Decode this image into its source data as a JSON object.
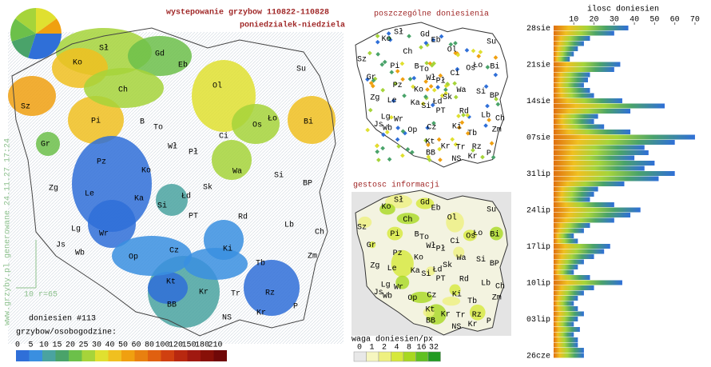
{
  "title": "wystepowanie grzybow 110822-110828",
  "subtitle": "poniedzialek-niedziela",
  "credit": "www.grzyby.pl generowane 24.11.27 17:24",
  "scale_label": "10 r=65",
  "reports": "doniesien #113",
  "cities": [
    "Sł",
    "Gd",
    "Ko",
    "Eb",
    "Su",
    "Ol",
    "Ch",
    "Sz",
    "Pi",
    "B",
    "To",
    "Os",
    "Ło",
    "Bi",
    "Gr",
    "Wł",
    "Pł",
    "Ci",
    "Pz",
    "Ko",
    "Wa",
    "Si",
    "Zg",
    "Le",
    "Ka",
    "Łd",
    "Sk",
    "BP",
    "Si",
    "PT",
    "Lg",
    "Wr",
    "Rd",
    "Lb",
    "Ch",
    "Js",
    "Wb",
    "Op",
    "Cz",
    "Ki",
    "Tb",
    "Zm",
    "Kt",
    "Kr",
    "Tr",
    "Rz",
    "BB",
    "NS",
    "Kr",
    "P"
  ],
  "legend": {
    "title": "grzybow/osobogodzine:",
    "values": [
      0,
      5,
      10,
      15,
      20,
      25,
      30,
      40,
      50,
      60,
      80,
      100,
      120,
      150,
      180,
      210
    ],
    "colors": [
      "#2f6fd8",
      "#3a8fe0",
      "#4aa3a0",
      "#4aa36a",
      "#6cc04a",
      "#a6d43a",
      "#e0e030",
      "#f0c020",
      "#f0a010",
      "#e88010",
      "#e06010",
      "#d04010",
      "#b82810",
      "#a01810",
      "#881008",
      "#700808"
    ]
  },
  "panel_reports": {
    "title": "poszczególne doniesienia"
  },
  "panel_density": {
    "title": "gestosc informacji",
    "legend_title": "waga doniesien/px",
    "values": [
      0,
      1,
      2,
      4,
      8,
      16,
      32
    ],
    "colors": [
      "#e8e8e8",
      "#f6f6c0",
      "#eef080",
      "#d6e83a",
      "#a8d820",
      "#60c020",
      "#209a20"
    ]
  },
  "chart_data": {
    "type": "bar",
    "title": "ilosc doniesien",
    "xlim": [
      0,
      72
    ],
    "xticks": [
      10,
      20,
      30,
      40,
      50,
      60,
      70
    ],
    "categories": [
      "28sie",
      null,
      null,
      null,
      null,
      null,
      null,
      "21sie",
      null,
      null,
      null,
      null,
      null,
      null,
      "14sie",
      null,
      null,
      null,
      null,
      null,
      null,
      "07sie",
      null,
      null,
      null,
      null,
      null,
      null,
      "31lip",
      null,
      null,
      null,
      null,
      null,
      null,
      "24lip",
      null,
      null,
      null,
      null,
      null,
      null,
      "17lip",
      null,
      null,
      null,
      null,
      null,
      null,
      "10lip",
      null,
      null,
      null,
      null,
      null,
      null,
      "03lip",
      null,
      null,
      null,
      null,
      null,
      null,
      "26cze"
    ],
    "values": [
      37,
      30,
      18,
      15,
      12,
      10,
      8,
      33,
      30,
      18,
      17,
      15,
      18,
      20,
      34,
      55,
      38,
      22,
      20,
      25,
      38,
      70,
      60,
      45,
      47,
      40,
      50,
      45,
      60,
      52,
      35,
      22,
      20,
      18,
      30,
      43,
      38,
      30,
      18,
      15,
      10,
      12,
      28,
      25,
      20,
      15,
      12,
      10,
      18,
      34,
      20,
      15,
      12,
      10,
      12,
      15,
      12,
      10,
      13,
      10,
      12,
      12,
      15,
      15
    ]
  }
}
